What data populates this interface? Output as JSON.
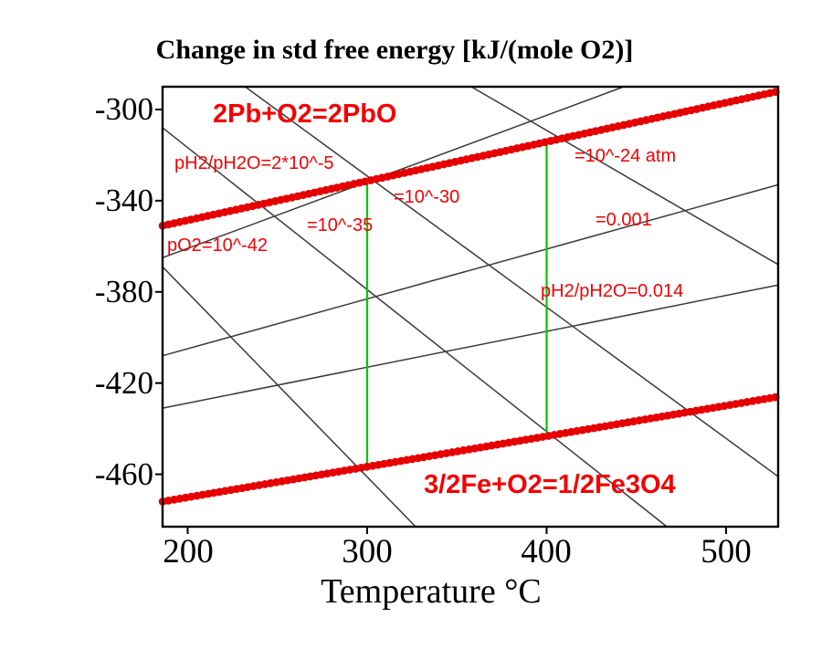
{
  "title": "Change in std free energy [kJ/(mole O2)]",
  "x_axis": {
    "label": "Temperature °C",
    "ticks": [
      200,
      300,
      400,
      500
    ]
  },
  "y_axis": {
    "ticks": [
      -300,
      -340,
      -380,
      -420,
      -460
    ]
  },
  "labels": {
    "pb_reaction": "2Pb+O2=2PbO",
    "fe_reaction": "3/2Fe+O2=1/2Fe3O4",
    "ph2_ph2o_upper": "pH2/pH2O=2*10^-5",
    "po2_24": "=10^-24 atm",
    "po2_30": "=10^-30",
    "po2_35": "=10^-35",
    "ratio_0001": "=0.001",
    "po2_42": "pO2=10^-42",
    "ph2_ph2o_lower": "pH2/pH2O=0.014"
  },
  "colors": {
    "reaction_line": "#e60000",
    "annotation_text": "#f40000",
    "construction_line": "#00c800",
    "iso_line": "#3a3a3a",
    "frame": "#000000",
    "background": "#ffffff"
  },
  "chart_data": {
    "type": "line",
    "title": "Change in std free energy [kJ/(mole O2)]",
    "xlabel": "Temperature °C",
    "ylabel": "Change in std free energy [kJ/(mole O2)]",
    "xlim": [
      186,
      529
    ],
    "ylim": [
      -483,
      -290
    ],
    "x_ticks": [
      200,
      300,
      400,
      500
    ],
    "y_ticks": [
      -300,
      -340,
      -380,
      -420,
      -460
    ],
    "grid": false,
    "legend": "none",
    "series": [
      {
        "id": "pb-reaction-line",
        "name": "2Pb+O2=2PbO",
        "style": "reaction",
        "x": [
          186,
          529
        ],
        "y": [
          -351,
          -292
        ]
      },
      {
        "id": "fe-reaction-line",
        "name": "3/2Fe+O2=1/2Fe3O4",
        "style": "reaction",
        "x": [
          186,
          529
        ],
        "y": [
          -472,
          -426
        ]
      },
      {
        "id": "po2-1e-42-line",
        "name": "pO2=10^-42",
        "style": "iso",
        "x": [
          186,
          327
        ],
        "y": [
          -369,
          -483
        ]
      },
      {
        "id": "po2-1e-35-line",
        "name": "pO2=10^-35",
        "style": "iso",
        "x": [
          186,
          467
        ],
        "y": [
          -308,
          -483
        ]
      },
      {
        "id": "po2-1e-30-line",
        "name": "pO2=10^-30",
        "style": "iso",
        "x": [
          232,
          529
        ],
        "y": [
          -290,
          -461
        ]
      },
      {
        "id": "po2-1e-24-line",
        "name": "pO2=10^-24 atm",
        "style": "iso",
        "x": [
          358,
          529
        ],
        "y": [
          -290,
          -368
        ]
      },
      {
        "id": "ph2-ph2o-2e-5-line",
        "name": "pH2/pH2O=2*10^-5",
        "style": "iso",
        "x": [
          186,
          443
        ],
        "y": [
          -365,
          -290
        ]
      },
      {
        "id": "ph2-ph2o-0001-line",
        "name": "pH2/pH2O=0.001",
        "style": "iso",
        "x": [
          186,
          529
        ],
        "y": [
          -408,
          -333
        ]
      },
      {
        "id": "ph2-ph2o-0014-line",
        "name": "pH2/pH2O=0.014",
        "style": "iso",
        "x": [
          186,
          529
        ],
        "y": [
          -431,
          -377
        ]
      },
      {
        "id": "construction-300c-line",
        "name": "300 C construction",
        "style": "construction",
        "x": [
          300,
          300
        ],
        "y": [
          -331,
          -457
        ]
      },
      {
        "id": "construction-400c-line",
        "name": "400 C construction",
        "style": "construction",
        "x": [
          400,
          400
        ],
        "y": [
          -314,
          -443
        ]
      }
    ]
  }
}
